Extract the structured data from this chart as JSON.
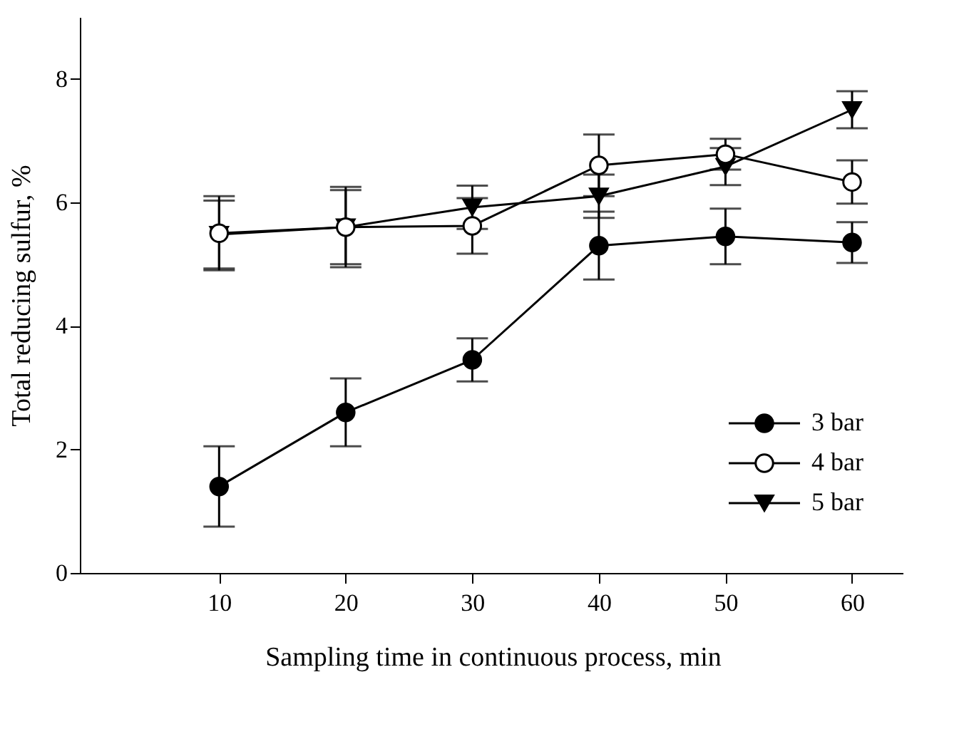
{
  "chart_data": {
    "type": "line",
    "xlabel": "Sampling time in continuous process, min",
    "ylabel": "Total reducing sulfur, %",
    "x": [
      10,
      20,
      30,
      40,
      50,
      60
    ],
    "series": [
      {
        "name": "3 bar",
        "color": "#000000",
        "marker": "circle",
        "values": [
          1.4,
          2.6,
          3.45,
          5.3,
          5.45,
          5.35
        ],
        "errors": [
          0.65,
          0.55,
          0.35,
          0.55,
          0.45,
          0.33
        ]
      },
      {
        "name": "4 bar",
        "color": "#000000",
        "marker": "circle",
        "values": [
          5.5,
          5.6,
          5.62,
          6.6,
          6.78,
          6.33
        ],
        "errors": [
          0.6,
          0.65,
          0.45,
          0.5,
          0.25,
          0.35
        ]
      },
      {
        "name": "5 bar",
        "color": "#000000",
        "marker": "triangle",
        "values": [
          5.48,
          5.6,
          5.92,
          6.1,
          6.58,
          7.5
        ],
        "errors": [
          0.55,
          0.6,
          0.35,
          0.35,
          0.3,
          0.3
        ]
      }
    ],
    "xlim": [
      -1,
      64
    ],
    "xticks": [
      10,
      20,
      30,
      40,
      50,
      60
    ],
    "ylim": [
      0,
      9
    ],
    "yticks": [
      0,
      2,
      4,
      6,
      8
    ],
    "grid": false,
    "legend": "bottom right",
    "line_style": "solid"
  }
}
